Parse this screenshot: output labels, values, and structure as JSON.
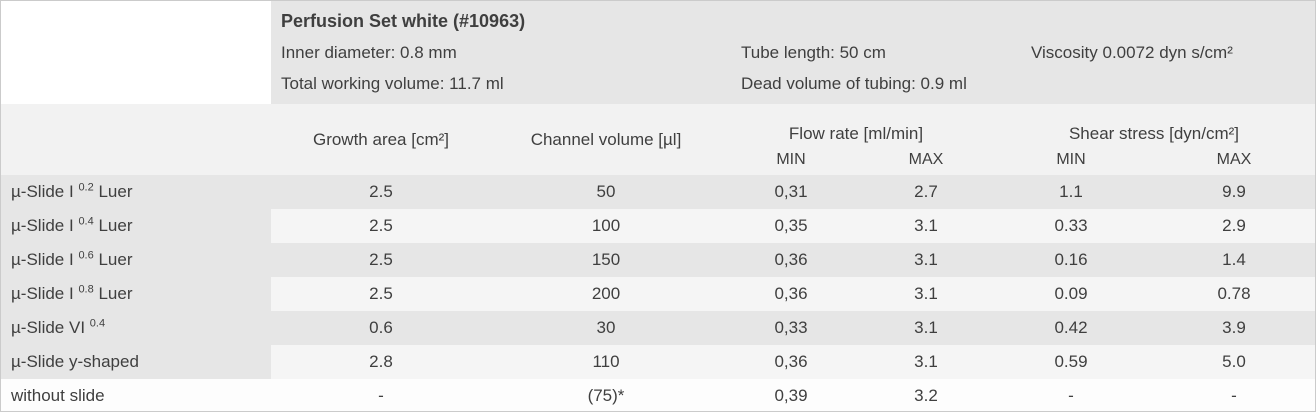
{
  "colors": {
    "header_bg": "#e6e6e6",
    "band_bg": "#f2f2f2",
    "row_alt_bg": "#f5f5f5",
    "text": "#3f3f3f"
  },
  "header": {
    "title": "Perfusion Set white (#10963)",
    "inner_diameter": "Inner diameter: 0.8 mm",
    "tube_length": "Tube length: 50 cm",
    "viscosity": "Viscosity 0.0072 dyn s/cm²",
    "total_working_volume": "Total working volume: 11.7 ml",
    "dead_volume": "Dead volume of tubing: 0.9 ml"
  },
  "table": {
    "columns": {
      "growth_area": "Growth area [cm²]",
      "channel_volume": "Channel volume [µl]",
      "flow_rate": "Flow rate [ml/min]",
      "shear_stress": "Shear stress [dyn/cm²]",
      "min": "MIN",
      "max": "MAX"
    },
    "rows": [
      {
        "name": {
          "prefix": "µ-Slide I ",
          "sup": "0.2",
          "suffix": " Luer"
        },
        "growth_area": "2.5",
        "channel_volume": "50",
        "flow_min": "0,31",
        "flow_max": "2.7",
        "shear_min": "1.1",
        "shear_max": "9.9"
      },
      {
        "name": {
          "prefix": "µ-Slide I ",
          "sup": "0.4",
          "suffix": " Luer"
        },
        "growth_area": "2.5",
        "channel_volume": "100",
        "flow_min": "0,35",
        "flow_max": "3.1",
        "shear_min": "0.33",
        "shear_max": "2.9"
      },
      {
        "name": {
          "prefix": "µ-Slide I ",
          "sup": "0.6",
          "suffix": " Luer"
        },
        "growth_area": "2.5",
        "channel_volume": "150",
        "flow_min": "0,36",
        "flow_max": "3.1",
        "shear_min": "0.16",
        "shear_max": "1.4"
      },
      {
        "name": {
          "prefix": "µ-Slide I ",
          "sup": "0.8",
          "suffix": " Luer"
        },
        "growth_area": "2.5",
        "channel_volume": "200",
        "flow_min": "0,36",
        "flow_max": "3.1",
        "shear_min": "0.09",
        "shear_max": "0.78"
      },
      {
        "name": {
          "prefix": "µ-Slide VI ",
          "sup": "0.4",
          "suffix": ""
        },
        "growth_area": "0.6",
        "channel_volume": "30",
        "flow_min": "0,33",
        "flow_max": "3.1",
        "shear_min": "0.42",
        "shear_max": "3.9"
      },
      {
        "name": {
          "prefix": "µ-Slide y-shaped",
          "sup": "",
          "suffix": ""
        },
        "growth_area": "2.8",
        "channel_volume": "110",
        "flow_min": "0,36",
        "flow_max": "3.1",
        "shear_min": "0.59",
        "shear_max": "5.0"
      },
      {
        "name": {
          "prefix": "without slide",
          "sup": "",
          "suffix": ""
        },
        "growth_area": "-",
        "channel_volume": "(75)*",
        "flow_min": "0,39",
        "flow_max": "3.2",
        "shear_min": "-",
        "shear_max": "-"
      }
    ]
  }
}
